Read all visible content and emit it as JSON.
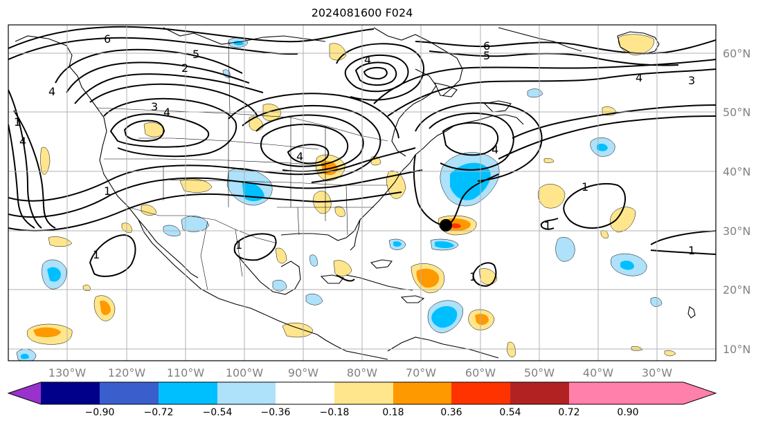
{
  "title": "2024081600 F024",
  "latitude_labels": [
    "60°N",
    "50°N",
    "40°N",
    "30°N",
    "20°N",
    "10°N"
  ],
  "longitude_labels": [
    "130°W",
    "120°W",
    "110°W",
    "100°W",
    "90°W",
    "80°W",
    "70°W",
    "60°W",
    "50°W",
    "40°W",
    "30°W"
  ],
  "colorbar": {
    "tick_labels": [
      "−0.90",
      "−0.72",
      "−0.54",
      "−0.36",
      "−0.18",
      "0.18",
      "0.36",
      "0.54",
      "0.72",
      "0.90"
    ],
    "colors": [
      "#9932cc",
      "#00008b",
      "#3a5fcd",
      "#00bfff",
      "#aee1fa",
      "#ffffff",
      "#ffe68c",
      "#ff9900",
      "#ff3300",
      "#b22222",
      "#ff80aa"
    ]
  },
  "contour_labels": [
    "6",
    "5",
    "2",
    "4",
    "3",
    "4",
    "6",
    "5",
    "4",
    "3",
    "1",
    "4",
    "1",
    "4",
    "4",
    "1",
    "1",
    "1",
    "1",
    "1",
    "1",
    "4"
  ],
  "storm_marker": "black-dot"
}
